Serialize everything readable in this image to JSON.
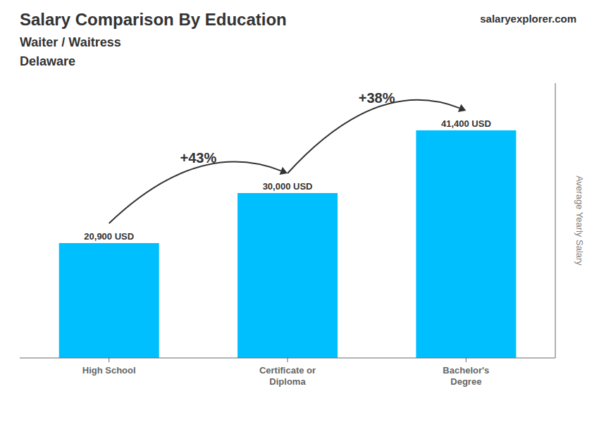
{
  "chart_data": {
    "type": "bar",
    "title": "Salary Comparison By Education",
    "subtitle": "Waiter / Waitress",
    "location": "Delaware",
    "source": [
      "salary",
      "explorer",
      ".com"
    ],
    "y_label": "Average Yearly Salary",
    "categories": [
      "High School",
      "Certificate or\nDiploma",
      "Bachelor's\nDegree"
    ],
    "values": [
      20900,
      30000,
      41400
    ],
    "value_labels": [
      "20,900 USD",
      "30,000 USD",
      "41,400 USD"
    ],
    "data_labels": true,
    "annotations": [
      "+43%",
      "+38%"
    ],
    "color": "#00bfff",
    "ylim": [
      0,
      50000
    ],
    "tick_labels": "x",
    "grid": false
  }
}
